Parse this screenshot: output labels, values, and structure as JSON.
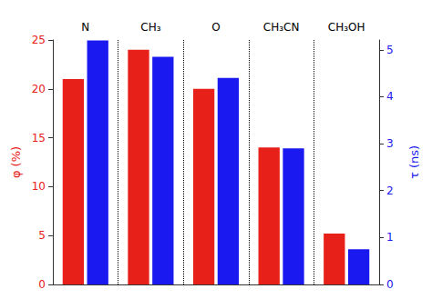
{
  "chart_data": {
    "type": "bar",
    "categories": [
      "N",
      "CH₃",
      "O",
      "CH₃CN",
      "CH₃OH"
    ],
    "series": [
      {
        "color": "#e8201a",
        "values": [
          21.0,
          24.0,
          20.0,
          14.0,
          5.2
        ]
      },
      {
        "color": "#1a1af0",
        "values": [
          5.2,
          4.85,
          4.4,
          2.9,
          0.75
        ],
        "axis": "y2"
      }
    ],
    "ylabel": "φ (%)",
    "y2label": "τ (ns)",
    "ylim": [
      0,
      25
    ],
    "yticks": [
      0,
      5,
      10,
      15,
      20,
      25
    ],
    "y2lim": [
      0,
      5.208333
    ],
    "y2ticks": [
      0,
      1,
      2,
      3,
      4,
      5
    ],
    "grid": false
  }
}
